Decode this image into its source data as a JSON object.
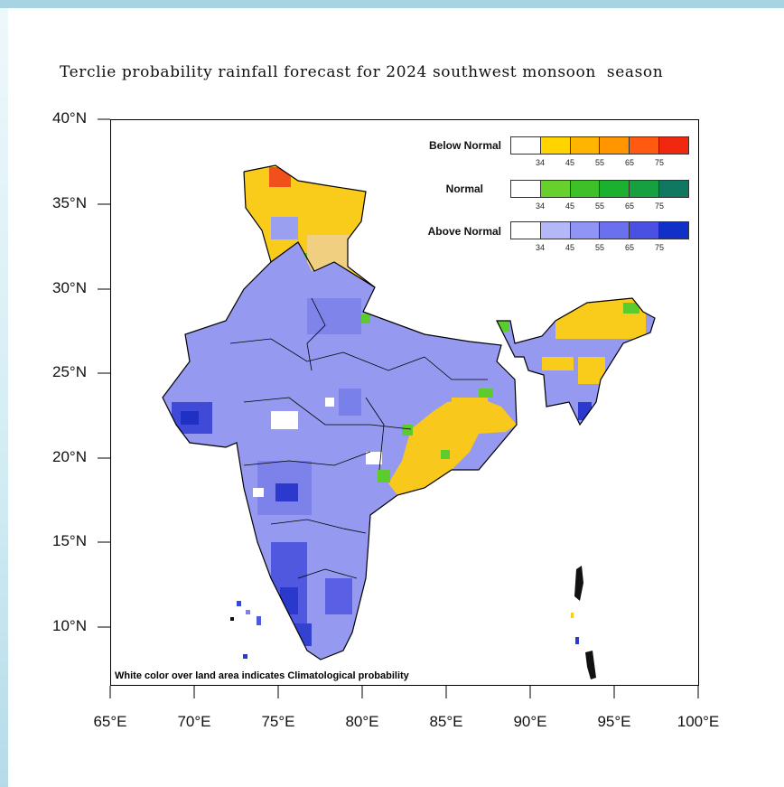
{
  "title": "Terclie probability rainfall forecast for 2024 southwest monsoon  season",
  "y_axis_labels": [
    "40°N",
    "35°N",
    "30°N",
    "25°N",
    "20°N",
    "15°N",
    "10°N"
  ],
  "x_axis_labels": [
    "65°E",
    "70°E",
    "75°E",
    "80°E",
    "85°E",
    "90°E",
    "95°E",
    "100°E"
  ],
  "legend": [
    {
      "name": "Below Normal",
      "colors": [
        "#ffffff",
        "#ffd400",
        "#ffb400",
        "#ff9600",
        "#ff5a10",
        "#f02810"
      ],
      "ticks": [
        "34",
        "45",
        "55",
        "65",
        "75"
      ]
    },
    {
      "name": "Normal",
      "colors": [
        "#ffffff",
        "#68d02c",
        "#3ec028",
        "#1cb030",
        "#16a040",
        "#107860"
      ],
      "ticks": [
        "34",
        "45",
        "55",
        "65",
        "75"
      ]
    },
    {
      "name": "Above Normal",
      "colors": [
        "#ffffff",
        "#b4b8f8",
        "#9094f4",
        "#6a70ee",
        "#4a50e2",
        "#1030c8"
      ],
      "ticks": [
        "34",
        "45",
        "55",
        "65",
        "75"
      ]
    }
  ],
  "footnote": "White color over land area indicates Climatological probability",
  "colors": {
    "above_normal_base": "#9297ef",
    "above_normal_dark": "#2c3acc",
    "below_normal": "#f8c81c",
    "normal": "#5ccc2c",
    "boundary": "#000000"
  }
}
